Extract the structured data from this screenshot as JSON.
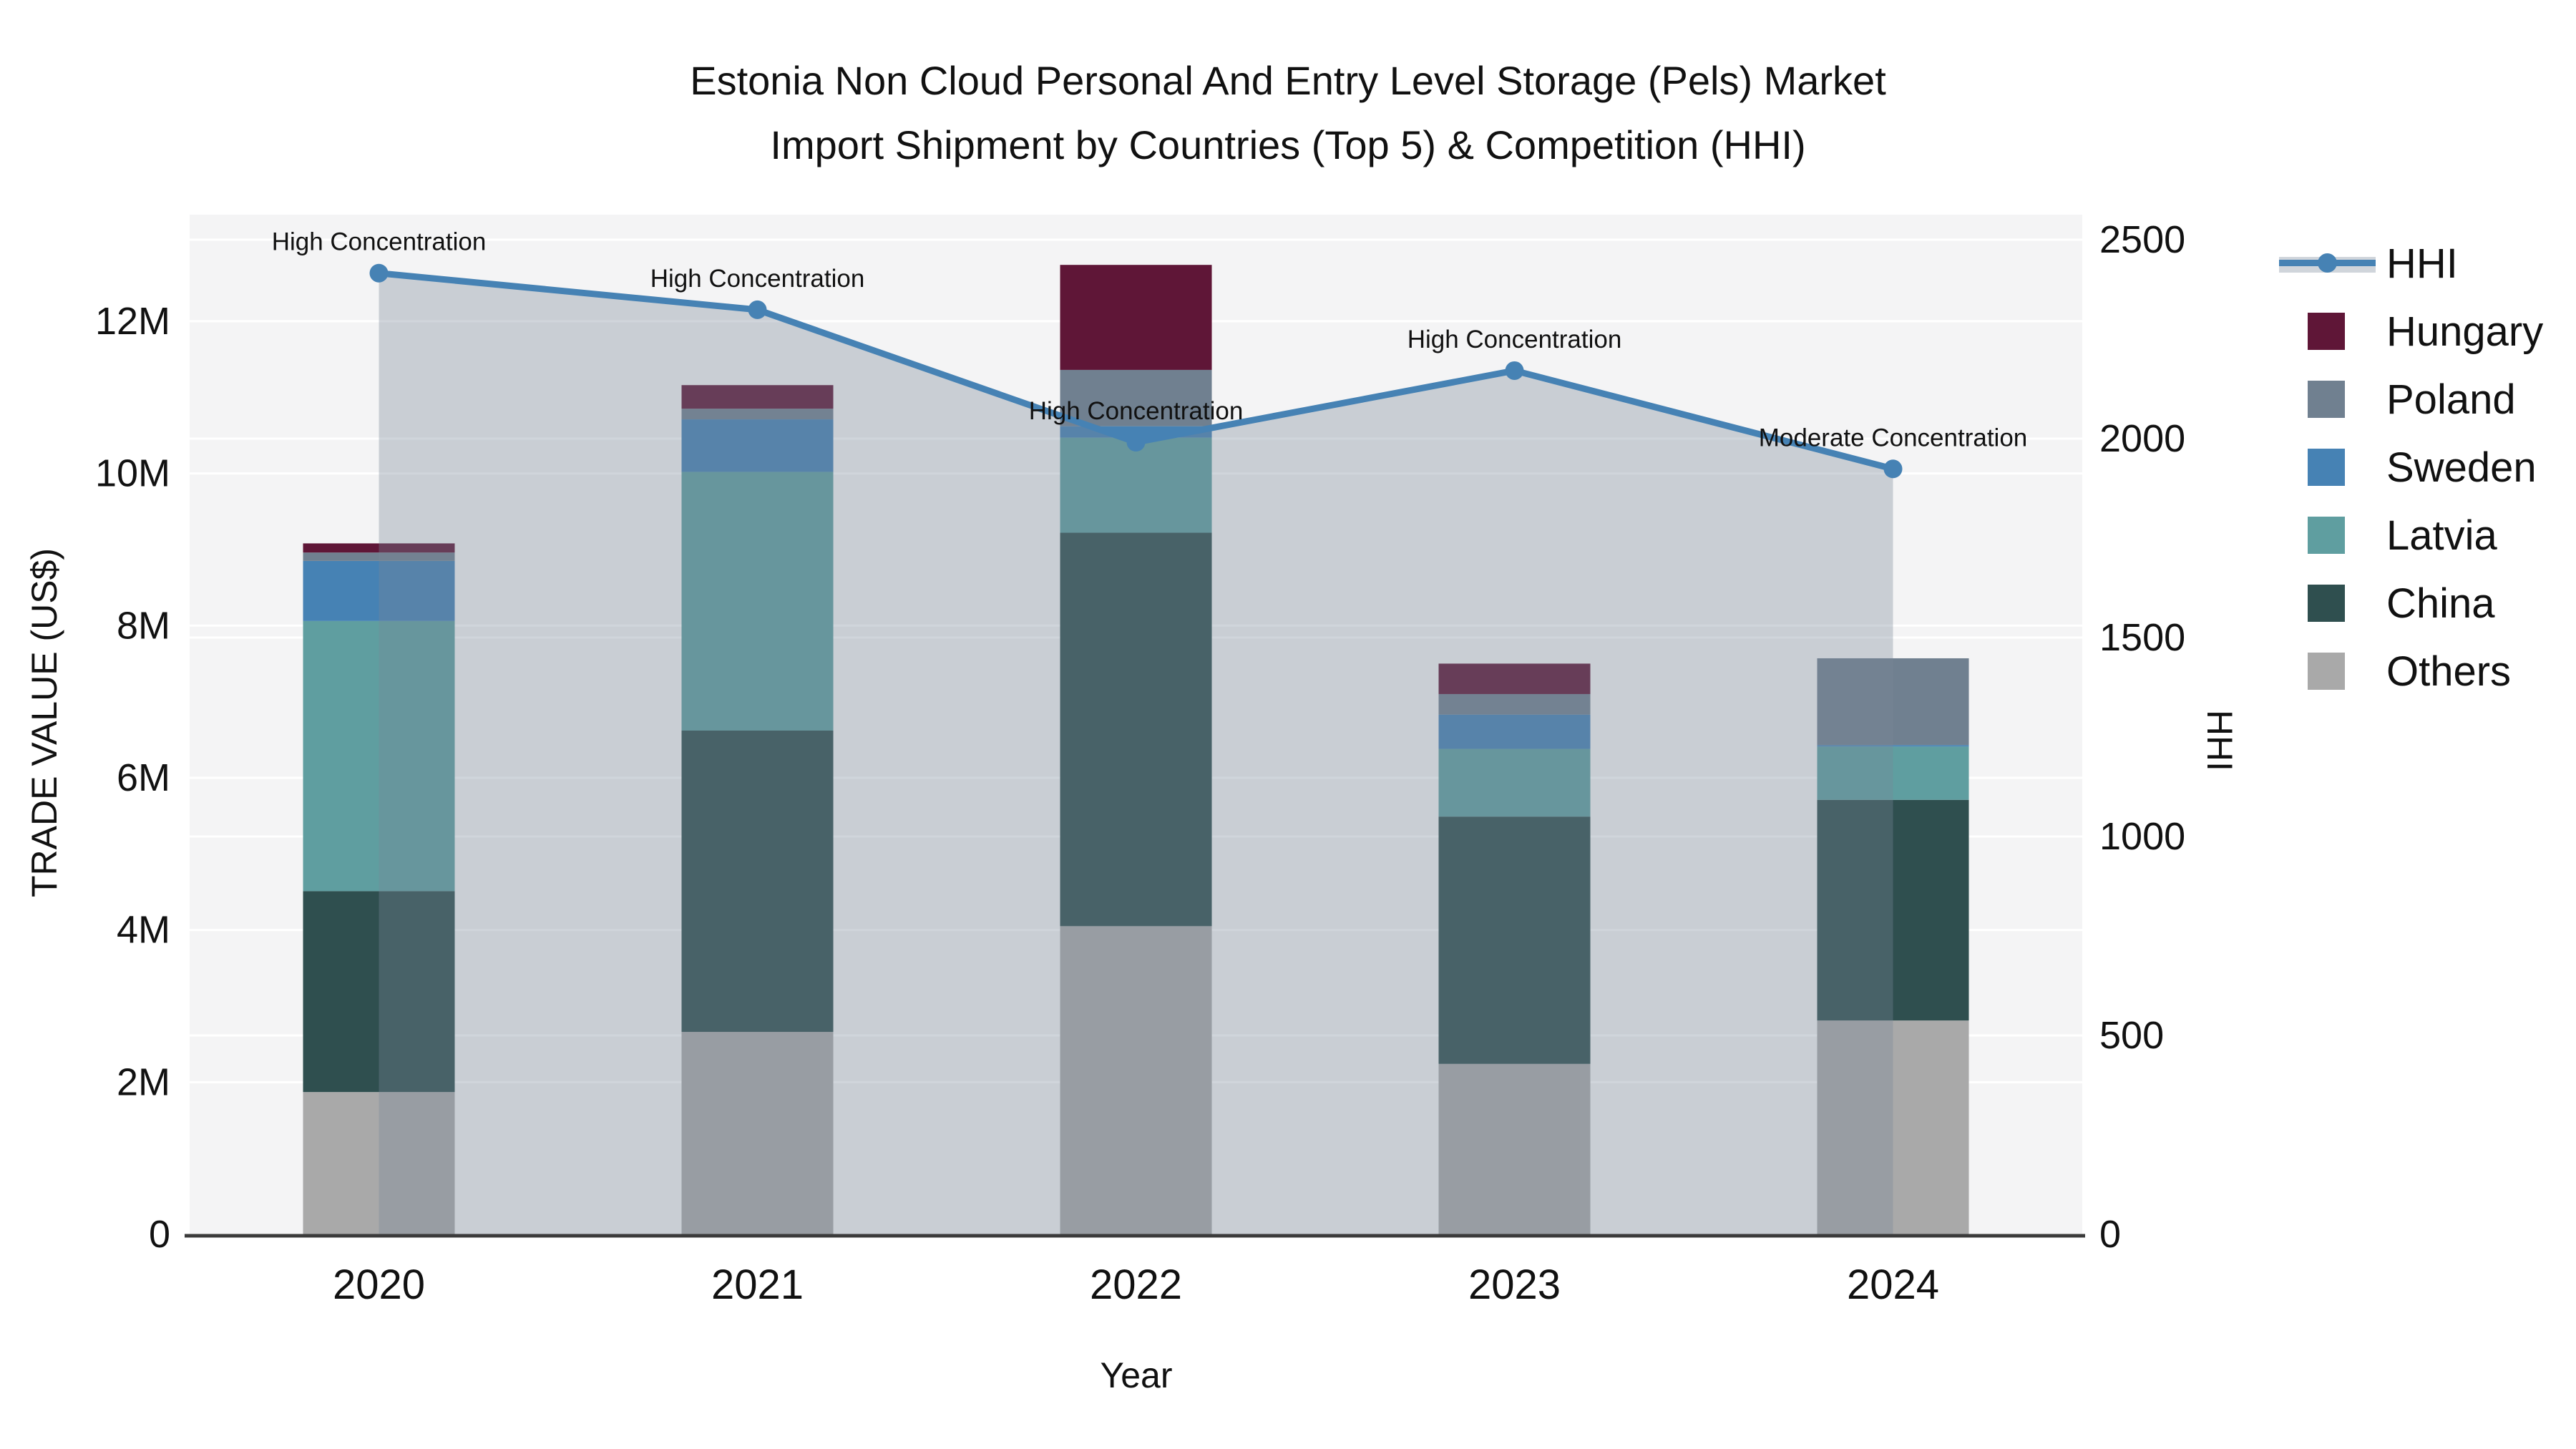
{
  "title": {
    "line1": "Estonia Non Cloud Personal And Entry Level Storage (Pels) Market",
    "line2": "Import Shipment by Countries (Top 5) & Competition (HHI)"
  },
  "axes": {
    "left_title": "TRADE VALUE (US$)",
    "right_title": "HHI",
    "x_title": "Year",
    "left_ticks": [
      "0",
      "2M",
      "4M",
      "6M",
      "8M",
      "10M",
      "12M"
    ],
    "left_tick_values_musd": [
      0,
      2,
      4,
      6,
      8,
      10,
      12
    ],
    "right_ticks": [
      "0",
      "500",
      "1000",
      "1500",
      "2000",
      "2500"
    ],
    "right_tick_values": [
      0,
      500,
      1000,
      1500,
      2000,
      2500
    ]
  },
  "chart_data": {
    "type": "bar+line",
    "unit": "million US$",
    "title": "Estonia Non Cloud Personal And Entry Level Storage (Pels) Market Import Shipment by Countries (Top 5) & Competition (HHI)",
    "xlabel": "Year",
    "ylabel_left": "TRADE VALUE (US$)",
    "ylabel_right": "HHI",
    "ylim_left_musd": [
      0,
      13.4
    ],
    "ylim_right": [
      0,
      2563
    ],
    "grid": true,
    "legend_position": "right",
    "categories": [
      "2020",
      "2021",
      "2022",
      "2023",
      "2024"
    ],
    "series": [
      {
        "name": "Others",
        "color": "#a9a9a9",
        "values": [
          1.87,
          2.66,
          4.05,
          2.24,
          2.81
        ]
      },
      {
        "name": "China",
        "color": "#2f4f4f",
        "values": [
          2.64,
          3.96,
          5.17,
          3.25,
          2.9
        ]
      },
      {
        "name": "Latvia",
        "color": "#5f9ea0",
        "values": [
          3.55,
          3.4,
          1.25,
          0.89,
          0.7
        ]
      },
      {
        "name": "Sweden",
        "color": "#4682b4",
        "values": [
          0.79,
          0.69,
          0.15,
          0.45,
          0.02
        ]
      },
      {
        "name": "Poland",
        "color": "#708090",
        "values": [
          0.11,
          0.14,
          0.74,
          0.27,
          1.14
        ]
      },
      {
        "name": "Hungary",
        "color": "#5f1637",
        "values": [
          0.12,
          0.31,
          1.38,
          0.4,
          0.0
        ]
      }
    ],
    "bar_totals_musd": [
      9.08,
      11.16,
      12.74,
      7.5,
      7.57
    ],
    "line": {
      "name": "HHI",
      "color": "#4682b4",
      "area_color": "rgba(119,136,153,0.35)",
      "values": [
        2416,
        2324,
        1991,
        2171,
        1924
      ]
    },
    "annotations": [
      {
        "year": "2020",
        "text": "High Concentration"
      },
      {
        "year": "2021",
        "text": "High Concentration"
      },
      {
        "year": "2022",
        "text": "High Concentration"
      },
      {
        "year": "2023",
        "text": "High Concentration"
      },
      {
        "year": "2024",
        "text": "Moderate Concentration"
      }
    ]
  },
  "legend": {
    "items": [
      {
        "label": "HHI",
        "type": "line",
        "color": "#4682b4"
      },
      {
        "label": "Hungary",
        "type": "swatch",
        "color": "#5f1637"
      },
      {
        "label": "Poland",
        "type": "swatch",
        "color": "#708090"
      },
      {
        "label": "Sweden",
        "type": "swatch",
        "color": "#4682b4"
      },
      {
        "label": "Latvia",
        "type": "swatch",
        "color": "#5f9ea0"
      },
      {
        "label": "China",
        "type": "swatch",
        "color": "#2f4f4f"
      },
      {
        "label": "Others",
        "type": "swatch",
        "color": "#a9a9a9"
      }
    ]
  },
  "style": {
    "plot_bg": "#f4f4f5",
    "gridline_color": "#ffffff",
    "axis_line_color": "#3b3b3b",
    "text_color": "#111111"
  }
}
